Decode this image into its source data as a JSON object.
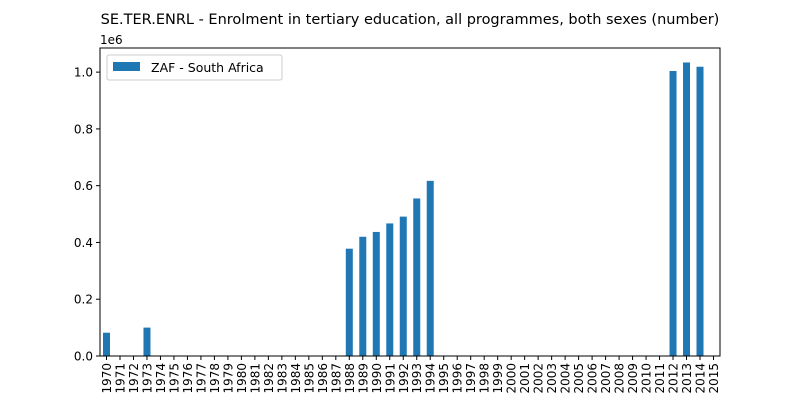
{
  "chart_data": {
    "type": "bar",
    "title": "SE.TER.ENRL - Enrolment in tertiary education, all programmes, both sexes (number)",
    "xlabel": "",
    "ylabel": "",
    "y_offset_label": "1e6",
    "ylim": [
      0,
      1.085
    ],
    "yticks": [
      0.0,
      0.2,
      0.4,
      0.6,
      0.8,
      1.0
    ],
    "ytick_labels": [
      "0.0",
      "0.2",
      "0.4",
      "0.6",
      "0.8",
      "1.0"
    ],
    "legend_position": "upper-left",
    "grid": false,
    "categories": [
      "1970",
      "1971",
      "1972",
      "1973",
      "1974",
      "1975",
      "1976",
      "1977",
      "1978",
      "1979",
      "1980",
      "1981",
      "1982",
      "1983",
      "1984",
      "1985",
      "1986",
      "1987",
      "1988",
      "1989",
      "1990",
      "1991",
      "1992",
      "1993",
      "1994",
      "1995",
      "1996",
      "1997",
      "1998",
      "1999",
      "2000",
      "2001",
      "2002",
      "2003",
      "2004",
      "2005",
      "2006",
      "2007",
      "2008",
      "2009",
      "2010",
      "2011",
      "2012",
      "2013",
      "2014",
      "2015"
    ],
    "series": [
      {
        "name": "ZAF - South Africa",
        "color": "#1f77b4",
        "values": [
          0.082,
          null,
          null,
          0.1,
          null,
          null,
          null,
          null,
          null,
          null,
          null,
          null,
          null,
          null,
          null,
          null,
          null,
          null,
          0.378,
          0.42,
          0.437,
          0.467,
          0.491,
          0.555,
          0.617,
          null,
          null,
          null,
          null,
          null,
          null,
          null,
          null,
          null,
          null,
          null,
          null,
          null,
          null,
          null,
          null,
          null,
          1.004,
          1.034,
          1.019,
          null
        ]
      }
    ]
  }
}
